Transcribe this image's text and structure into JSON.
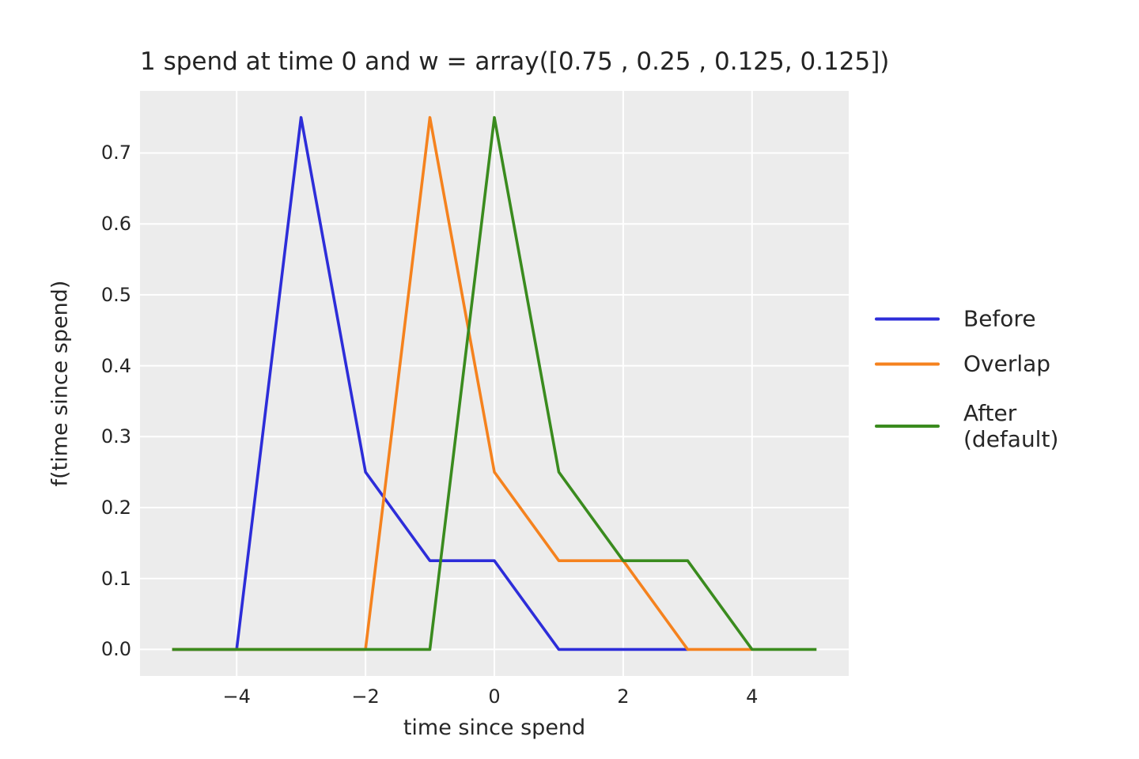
{
  "chart_data": {
    "type": "line",
    "title": "1 spend at time 0 and w = array([0.75 , 0.25 , 0.125, 0.125])",
    "xlabel": "time since spend",
    "ylabel": "f(time since spend)",
    "xlim": [
      -5.5,
      5.5
    ],
    "ylim": [
      -0.0375,
      0.7875
    ],
    "xtick_values": [
      -4,
      -2,
      0,
      2,
      4
    ],
    "xtick_labels": [
      "−4",
      "−2",
      "0",
      "2",
      "4"
    ],
    "ytick_values": [
      0.0,
      0.1,
      0.2,
      0.3,
      0.4,
      0.5,
      0.6,
      0.7
    ],
    "ytick_labels": [
      "0.0",
      "0.1",
      "0.2",
      "0.3",
      "0.4",
      "0.5",
      "0.6",
      "0.7"
    ],
    "grid": true,
    "plot_background_color": "#ececec",
    "grid_color": "#ffffff",
    "text_color": "#262626",
    "legend_position": "outside-right",
    "series": [
      {
        "name": "Before",
        "color": "#2d2dd9",
        "x": [
          -5,
          -4,
          -3,
          -2,
          -1,
          0,
          1,
          2,
          3
        ],
        "y": [
          0,
          0,
          0.75,
          0.25,
          0.125,
          0.125,
          0,
          0,
          0
        ]
      },
      {
        "name": "Overlap",
        "color": "#f5821e",
        "x": [
          -5,
          -4,
          -3,
          -2,
          -1,
          0,
          1,
          2,
          3,
          4
        ],
        "y": [
          0,
          0,
          0,
          0,
          0.75,
          0.25,
          0.125,
          0.125,
          0,
          0
        ]
      },
      {
        "name": "After\n(default)",
        "color": "#3a8b1e",
        "x": [
          -5,
          -4,
          -3,
          -2,
          -1,
          0,
          1,
          2,
          3,
          4,
          5
        ],
        "y": [
          0,
          0,
          0,
          0,
          0,
          0.75,
          0.25,
          0.125,
          0.125,
          0,
          0
        ]
      }
    ]
  }
}
